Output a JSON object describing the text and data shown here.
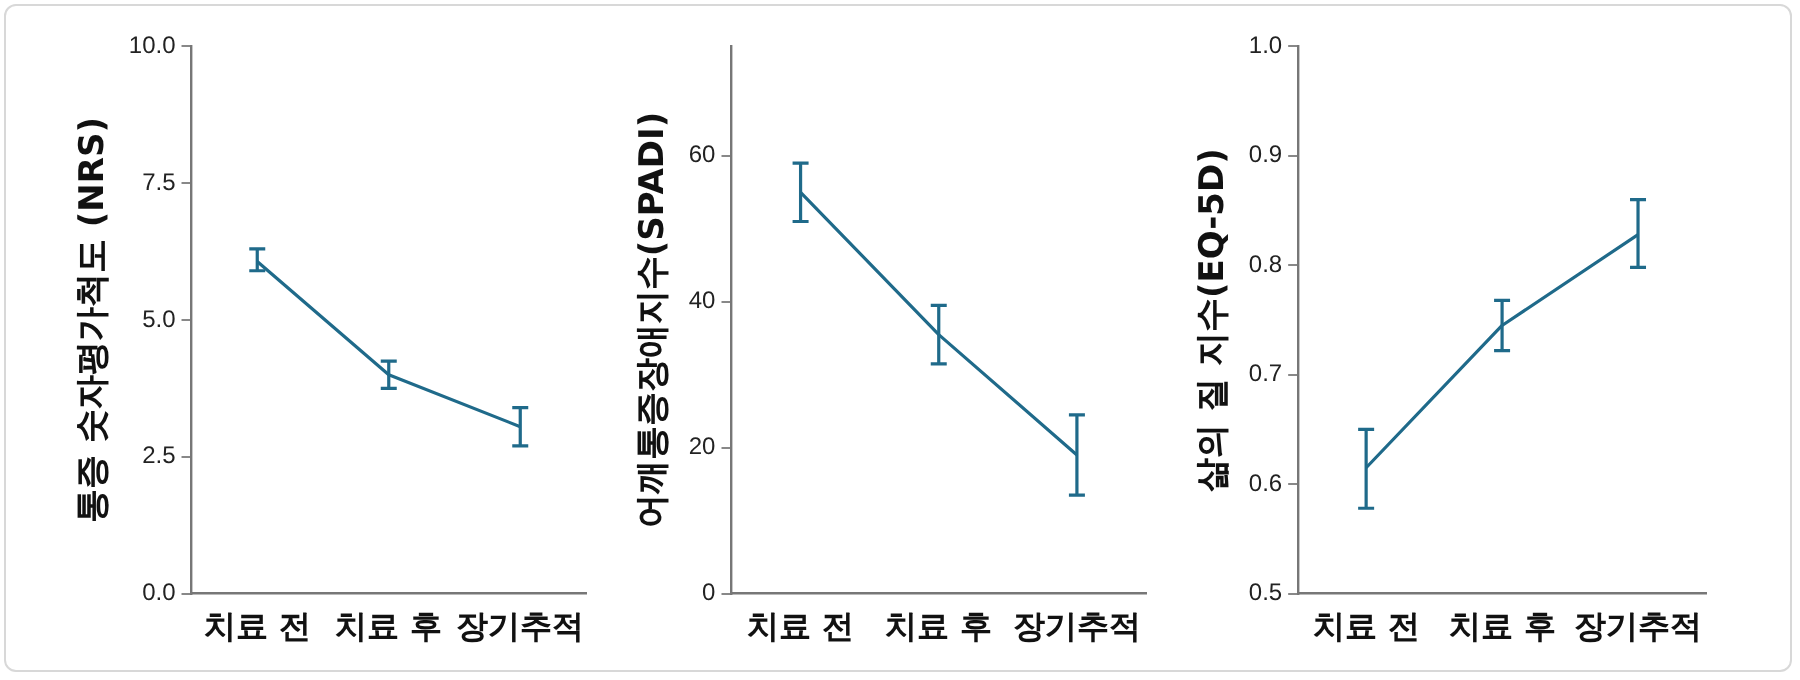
{
  "chart_data": [
    {
      "type": "line",
      "ylabel": "통증 숫자평가척도 (NRS)",
      "categories": [
        "치료 전",
        "치료 후",
        "장기추적"
      ],
      "series": [
        {
          "color": "#1f6a8a",
          "values": [
            6.07,
            4.0,
            3.05
          ],
          "errors": [
            [
              5.9,
              6.3
            ],
            [
              3.75,
              4.25
            ],
            [
              2.7,
              3.4
            ]
          ]
        }
      ],
      "ylim": [
        0,
        10
      ],
      "yticks": [
        {
          "value": 0,
          "label": "0.0"
        },
        {
          "value": 2.5,
          "label": "2.5"
        },
        {
          "value": 5,
          "label": "5.0"
        },
        {
          "value": 7.5,
          "label": "7.5"
        },
        {
          "value": 10,
          "label": "10.0"
        }
      ],
      "grid": false,
      "legend": false,
      "marker": "none"
    },
    {
      "type": "line",
      "ylabel": "어깨통증장애지수(SPADI)",
      "categories": [
        "치료 전",
        "치료 후",
        "장기추적"
      ],
      "series": [
        {
          "color": "#1f6a8a",
          "values": [
            55,
            35.5,
            19
          ],
          "errors": [
            [
              51,
              59
            ],
            [
              31.5,
              39.5
            ],
            [
              13.5,
              24.5
            ]
          ]
        }
      ],
      "ylim": [
        0,
        75
      ],
      "yticks": [
        0,
        20,
        40,
        60
      ],
      "grid": false,
      "legend": false,
      "marker": "none"
    },
    {
      "type": "line",
      "ylabel": "삶의 질 지수(EQ-5D)",
      "categories": [
        "치료 전",
        "치료 후",
        "장기추적"
      ],
      "series": [
        {
          "color": "#1f6a8a",
          "values": [
            0.615,
            0.745,
            0.828
          ],
          "errors": [
            [
              0.578,
              0.65
            ],
            [
              0.722,
              0.768
            ],
            [
              0.798,
              0.86
            ]
          ]
        }
      ],
      "ylim": [
        0.5,
        1
      ],
      "yticks": [
        0.5,
        0.6,
        0.7,
        0.8,
        0.9,
        {
          "value": 1,
          "label": "1.0"
        }
      ],
      "grid": false,
      "legend": false,
      "marker": "none"
    }
  ]
}
